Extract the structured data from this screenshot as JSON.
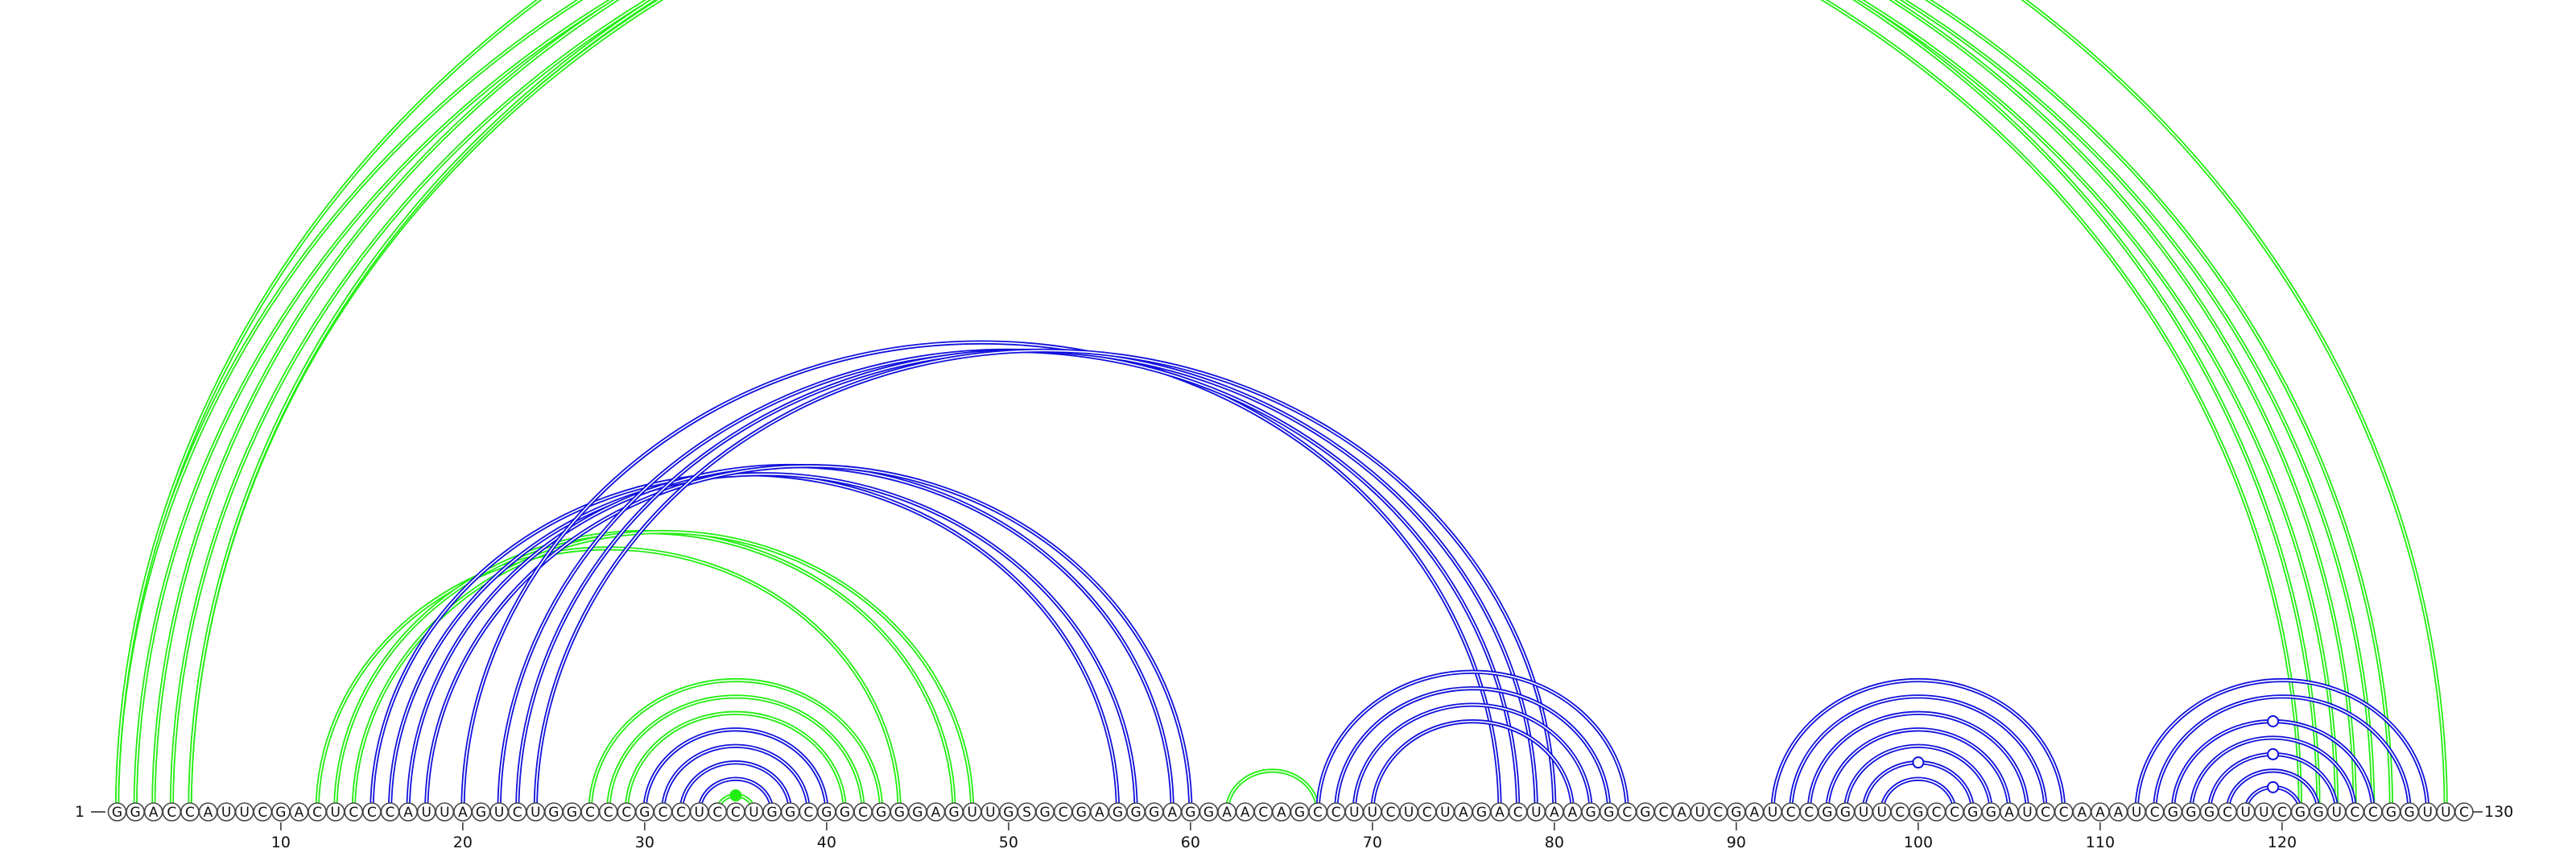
{
  "sequence": "GGACCAUUCGACUCCCAUUAGUCUGGCCCGCCUCCUGGCGGCGGGAGUUGSGCGAGGGAGGAACAGCCUUCUCUAGACUAAGGCGCAUCGAUCCGGUUCGCCGGAUCCAAAUCGGGCUUCGGUCCGGUUC",
  "start_label": "1",
  "end_label": "130",
  "ticks": [
    "10",
    "20",
    "30",
    "40",
    "50",
    "60",
    "70",
    "80",
    "90",
    "100",
    "110",
    "120"
  ],
  "colors": {
    "green": "#22ee11",
    "blue": "#1111dd"
  },
  "arcs": [
    {
      "color": "green",
      "style": "double",
      "i": 1,
      "j": 122
    },
    {
      "color": "green",
      "style": "double",
      "i": 2,
      "j": 121
    },
    {
      "color": "green",
      "style": "double",
      "i": 3,
      "j": 124
    },
    {
      "color": "green",
      "style": "double",
      "i": 4,
      "j": 123
    },
    {
      "color": "green",
      "style": "double",
      "i": 5,
      "j": 125
    },
    {
      "color": "green",
      "style": "double",
      "i": 5,
      "j": 126
    },
    {
      "color": "green",
      "style": "double",
      "i": 1,
      "j": 129
    },
    {
      "color": "green",
      "style": "double",
      "i": 12,
      "j": 44
    },
    {
      "color": "green",
      "style": "double",
      "i": 13,
      "j": 47
    },
    {
      "color": "green",
      "style": "double",
      "i": 14,
      "j": 48
    },
    {
      "color": "blue",
      "style": "double",
      "i": 15,
      "j": 56
    },
    {
      "color": "blue",
      "style": "double",
      "i": 16,
      "j": 57
    },
    {
      "color": "blue",
      "style": "double",
      "i": 17,
      "j": 59
    },
    {
      "color": "blue",
      "style": "double",
      "i": 18,
      "j": 60
    },
    {
      "color": "blue",
      "style": "double",
      "i": 20,
      "j": 77
    },
    {
      "color": "blue",
      "style": "double",
      "i": 22,
      "j": 78
    },
    {
      "color": "blue",
      "style": "double",
      "i": 23,
      "j": 79
    },
    {
      "color": "blue",
      "style": "double",
      "i": 24,
      "j": 80
    },
    {
      "color": "green",
      "style": "double",
      "i": 27,
      "j": 43
    },
    {
      "color": "green",
      "style": "double",
      "i": 28,
      "j": 42
    },
    {
      "color": "green",
      "style": "double",
      "i": 29,
      "j": 41
    },
    {
      "color": "blue",
      "style": "double",
      "i": 30,
      "j": 40
    },
    {
      "color": "blue",
      "style": "double",
      "i": 31,
      "j": 39
    },
    {
      "color": "blue",
      "style": "double",
      "i": 32,
      "j": 38
    },
    {
      "color": "blue",
      "style": "double",
      "i": 33,
      "j": 37
    },
    {
      "color": "green",
      "style": "double",
      "i": 34,
      "j": 36
    },
    {
      "color": "green",
      "style": "double",
      "i": 62,
      "j": 67
    },
    {
      "color": "blue",
      "style": "double",
      "i": 67,
      "j": 84
    },
    {
      "color": "blue",
      "style": "double",
      "i": 68,
      "j": 83
    },
    {
      "color": "blue",
      "style": "double",
      "i": 69,
      "j": 82
    },
    {
      "color": "blue",
      "style": "double",
      "i": 70,
      "j": 81
    },
    {
      "color": "blue",
      "style": "double",
      "i": 92,
      "j": 108
    },
    {
      "color": "blue",
      "style": "double",
      "i": 93,
      "j": 107
    },
    {
      "color": "blue",
      "style": "double",
      "i": 94,
      "j": 106
    },
    {
      "color": "blue",
      "style": "double",
      "i": 95,
      "j": 105
    },
    {
      "color": "blue",
      "style": "double",
      "i": 96,
      "j": 104
    },
    {
      "color": "blue",
      "style": "double",
      "i": 97,
      "j": 103
    },
    {
      "color": "blue",
      "style": "double",
      "i": 98,
      "j": 102
    },
    {
      "color": "blue",
      "style": "double",
      "i": 112,
      "j": 128
    },
    {
      "color": "blue",
      "style": "double",
      "i": 113,
      "j": 127
    },
    {
      "color": "blue",
      "style": "double",
      "i": 114,
      "j": 125
    },
    {
      "color": "blue",
      "style": "double",
      "i": 115,
      "j": 124
    },
    {
      "color": "blue",
      "style": "double",
      "i": 116,
      "j": 123
    },
    {
      "color": "blue",
      "style": "double",
      "i": 117,
      "j": 122
    },
    {
      "color": "blue",
      "style": "double",
      "i": 118,
      "j": 121
    }
  ],
  "markers": [
    {
      "color": "green",
      "filled": false,
      "i": 1,
      "j": 129
    },
    {
      "color": "green",
      "filled": true,
      "i": 34,
      "j": 36
    },
    {
      "color": "blue",
      "filled": false,
      "i": 97,
      "j": 103
    },
    {
      "color": "blue",
      "filled": false,
      "i": 114,
      "j": 125
    },
    {
      "color": "blue",
      "filled": false,
      "i": 116,
      "j": 123
    },
    {
      "color": "blue",
      "filled": false,
      "i": 118,
      "j": 121
    }
  ]
}
